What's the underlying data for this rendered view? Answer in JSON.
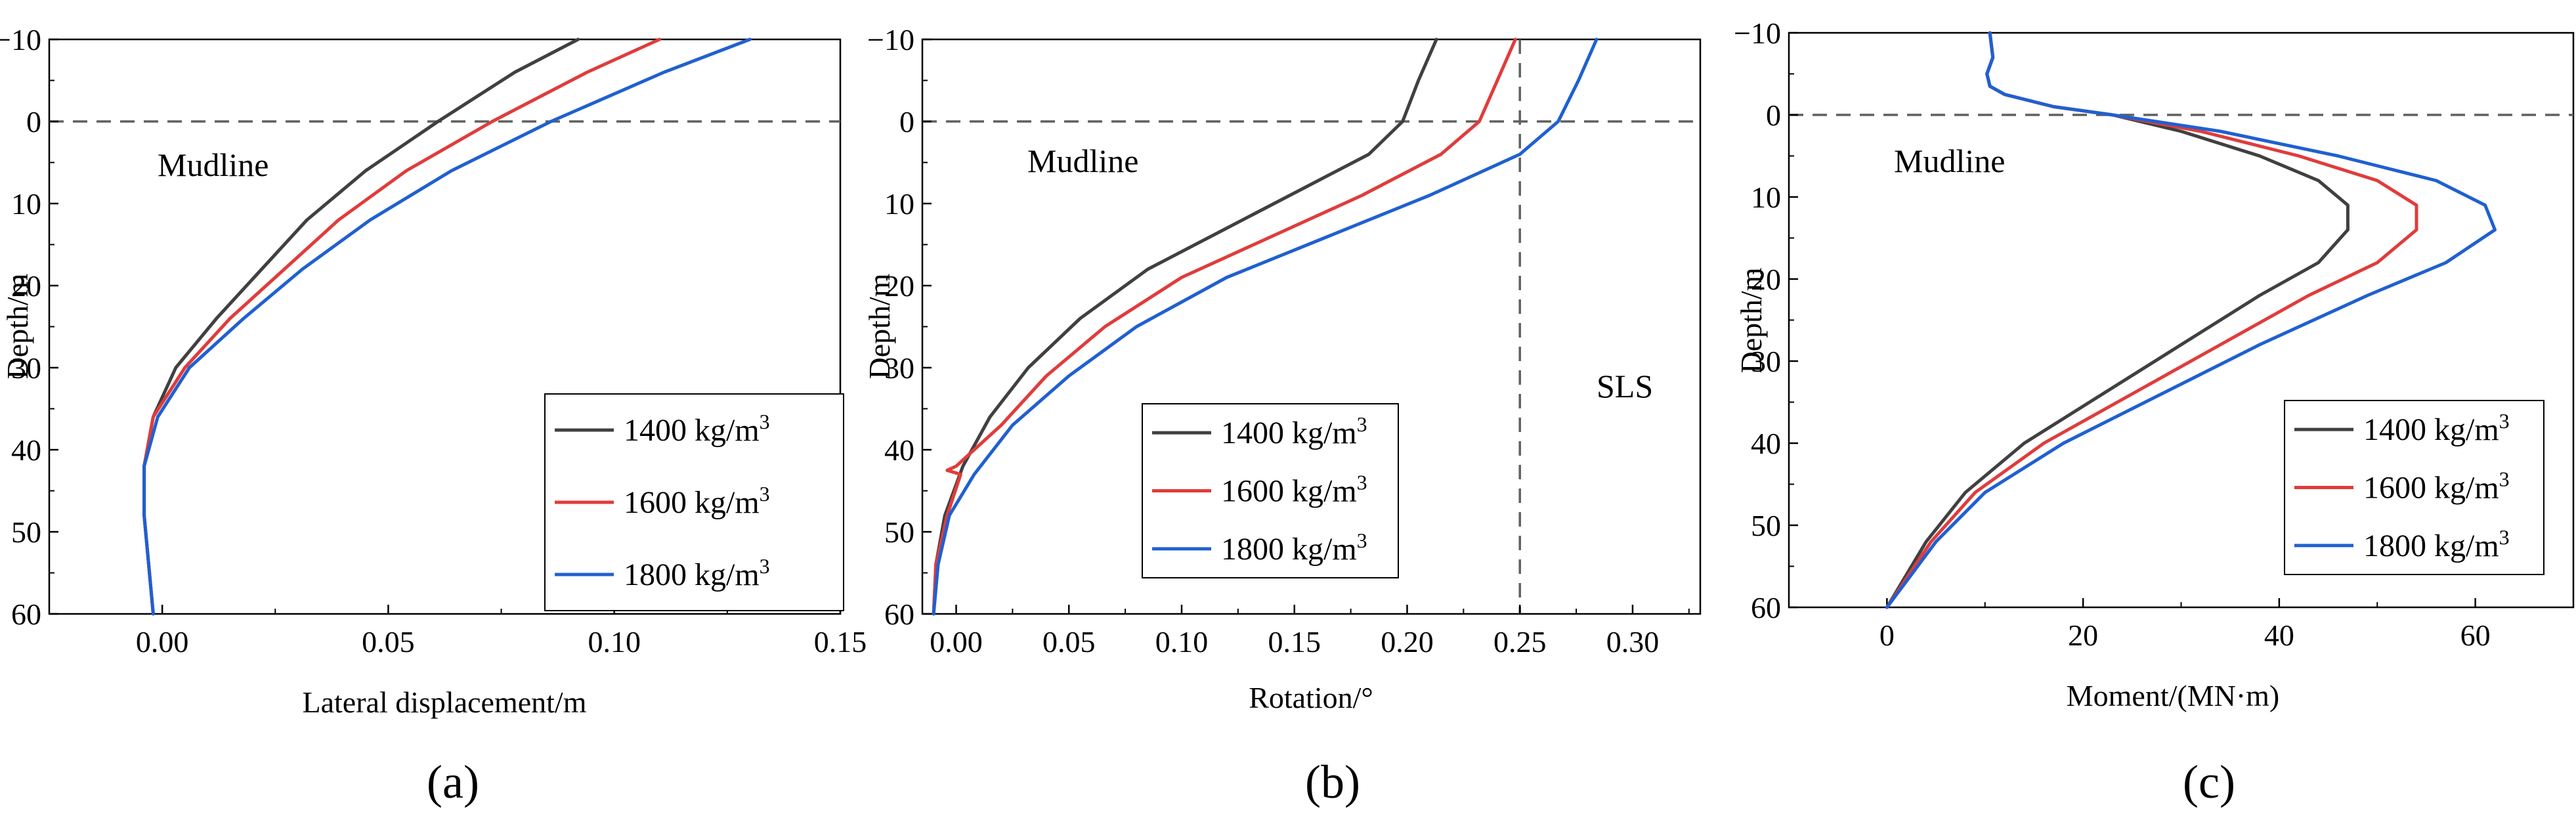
{
  "chart_data": [
    {
      "type": "line",
      "panel_label": "(a)",
      "xlabel": "Lateral displacement/m",
      "ylabel": "Depth/m",
      "xlim": [
        -0.025,
        0.15
      ],
      "ylim": [
        -10,
        60
      ],
      "y_inverted": true,
      "xticks": [
        0.0,
        0.05,
        0.1,
        0.15
      ],
      "xtick_labels": [
        "0.00",
        "0.05",
        "0.10",
        "0.15"
      ],
      "yticks": [
        -10,
        0,
        10,
        20,
        30,
        40,
        50,
        60
      ],
      "ytick_labels": [
        "−10",
        "0",
        "10",
        "20",
        "30",
        "40",
        "50",
        "60"
      ],
      "mudline": {
        "depth": 0,
        "label": "Mudline"
      },
      "legend_position": "lower-right",
      "series": [
        {
          "name": "1400 kg/m",
          "sup": "3",
          "color": "#404040",
          "points": [
            [
              0.092,
              -10
            ],
            [
              0.078,
              -6
            ],
            [
              0.061,
              0
            ],
            [
              0.045,
              6
            ],
            [
              0.032,
              12
            ],
            [
              0.022,
              18
            ],
            [
              0.012,
              24
            ],
            [
              0.003,
              30
            ],
            [
              -0.002,
              36
            ],
            [
              -0.004,
              42
            ],
            [
              -0.004,
              48
            ],
            [
              -0.003,
              54
            ],
            [
              -0.002,
              60
            ]
          ]
        },
        {
          "name": "1600 kg/m",
          "sup": "3",
          "color": "#e03c3c",
          "points": [
            [
              0.11,
              -10
            ],
            [
              0.094,
              -6
            ],
            [
              0.073,
              0
            ],
            [
              0.054,
              6
            ],
            [
              0.039,
              12
            ],
            [
              0.027,
              18
            ],
            [
              0.015,
              24
            ],
            [
              0.005,
              30
            ],
            [
              -0.002,
              36
            ],
            [
              -0.004,
              42
            ],
            [
              -0.004,
              48
            ],
            [
              -0.003,
              54
            ],
            [
              -0.002,
              60
            ]
          ]
        },
        {
          "name": "1800 kg/m",
          "sup": "3",
          "color": "#2060d0",
          "points": [
            [
              0.13,
              -10
            ],
            [
              0.111,
              -6
            ],
            [
              0.086,
              0
            ],
            [
              0.064,
              6
            ],
            [
              0.046,
              12
            ],
            [
              0.031,
              18
            ],
            [
              0.018,
              24
            ],
            [
              0.006,
              30
            ],
            [
              -0.001,
              36
            ],
            [
              -0.004,
              42
            ],
            [
              -0.004,
              48
            ],
            [
              -0.003,
              54
            ],
            [
              -0.002,
              60
            ]
          ]
        }
      ]
    },
    {
      "type": "line",
      "panel_label": "(b)",
      "xlabel": "Rotation/°",
      "ylabel": "Depth/m",
      "xlim": [
        -0.015,
        0.33
      ],
      "ylim": [
        -10,
        60
      ],
      "y_inverted": true,
      "xticks": [
        0.0,
        0.05,
        0.1,
        0.15,
        0.2,
        0.25,
        0.3
      ],
      "xtick_labels": [
        "0.00",
        "0.05",
        "0.10",
        "0.15",
        "0.20",
        "0.25",
        "0.30"
      ],
      "yticks": [
        -10,
        0,
        10,
        20,
        30,
        40,
        50,
        60
      ],
      "ytick_labels": [
        "−10",
        "0",
        "10",
        "20",
        "30",
        "40",
        "50",
        "60"
      ],
      "mudline": {
        "depth": 0,
        "label": "Mudline"
      },
      "limit_line": {
        "x": 0.25,
        "label": "SLS"
      },
      "legend_position": "lower-left",
      "series": [
        {
          "name": "1400 kg/m",
          "sup": "3",
          "color": "#404040",
          "points": [
            [
              0.213,
              -10
            ],
            [
              0.205,
              -5
            ],
            [
              0.198,
              0
            ],
            [
              0.183,
              4
            ],
            [
              0.155,
              8
            ],
            [
              0.12,
              13
            ],
            [
              0.085,
              18
            ],
            [
              0.055,
              24
            ],
            [
              0.032,
              30
            ],
            [
              0.015,
              36
            ],
            [
              0.003,
              42
            ],
            [
              -0.005,
              48
            ],
            [
              -0.009,
              54
            ],
            [
              -0.01,
              60
            ]
          ]
        },
        {
          "name": "1600 kg/m",
          "sup": "3",
          "color": "#e03c3c",
          "points": [
            [
              0.248,
              -10
            ],
            [
              0.24,
              -5
            ],
            [
              0.232,
              0
            ],
            [
              0.215,
              4
            ],
            [
              0.18,
              9
            ],
            [
              0.14,
              14
            ],
            [
              0.1,
              19
            ],
            [
              0.066,
              25
            ],
            [
              0.04,
              31
            ],
            [
              0.02,
              37
            ],
            [
              0.0,
              42
            ],
            [
              -0.004,
              42.5
            ],
            [
              0.002,
              43
            ],
            [
              -0.004,
              48
            ],
            [
              -0.009,
              54
            ],
            [
              -0.01,
              60
            ]
          ]
        },
        {
          "name": "1800 kg/m",
          "sup": "3",
          "color": "#2060d0",
          "points": [
            [
              0.284,
              -10
            ],
            [
              0.276,
              -5
            ],
            [
              0.267,
              0
            ],
            [
              0.25,
              4
            ],
            [
              0.21,
              9
            ],
            [
              0.165,
              14
            ],
            [
              0.12,
              19
            ],
            [
              0.08,
              25
            ],
            [
              0.05,
              31
            ],
            [
              0.025,
              37
            ],
            [
              0.008,
              43
            ],
            [
              -0.003,
              48
            ],
            [
              -0.008,
              54
            ],
            [
              -0.01,
              60
            ]
          ]
        }
      ]
    },
    {
      "type": "line",
      "panel_label": "(c)",
      "xlabel": "Moment/(MN·m)",
      "ylabel": "Depth/m",
      "xlim": [
        -10,
        70
      ],
      "ylim": [
        -10,
        60
      ],
      "y_inverted": true,
      "xticks": [
        0,
        20,
        40,
        60
      ],
      "xtick_labels": [
        "0",
        "20",
        "40",
        "60"
      ],
      "yticks": [
        -10,
        0,
        10,
        20,
        30,
        40,
        50,
        60
      ],
      "ytick_labels": [
        "−10",
        "0",
        "10",
        "20",
        "30",
        "40",
        "50",
        "60"
      ],
      "mudline": {
        "depth": 0,
        "label": "Mudline"
      },
      "legend_position": "lower-right",
      "series": [
        {
          "name": "1400 kg/m",
          "sup": "3",
          "color": "#404040",
          "points": [
            [
              10.5,
              -10
            ],
            [
              10.8,
              -7
            ],
            [
              10.2,
              -5
            ],
            [
              10.5,
              -3.5
            ],
            [
              12,
              -2.5
            ],
            [
              17,
              -1
            ],
            [
              23,
              0
            ],
            [
              30,
              2
            ],
            [
              38,
              5
            ],
            [
              44,
              8
            ],
            [
              47,
              11
            ],
            [
              47,
              14
            ],
            [
              44,
              18
            ],
            [
              38,
              22
            ],
            [
              30,
              28
            ],
            [
              22,
              34
            ],
            [
              14,
              40
            ],
            [
              8,
              46
            ],
            [
              4,
              52
            ],
            [
              0,
              60
            ]
          ]
        },
        {
          "name": "1600 kg/m",
          "sup": "3",
          "color": "#e03c3c",
          "points": [
            [
              10.5,
              -10
            ],
            [
              10.8,
              -7
            ],
            [
              10.2,
              -5
            ],
            [
              10.5,
              -3.5
            ],
            [
              12,
              -2.5
            ],
            [
              17,
              -1
            ],
            [
              23,
              0
            ],
            [
              32,
              2
            ],
            [
              42,
              5
            ],
            [
              50,
              8
            ],
            [
              54,
              11
            ],
            [
              54,
              14
            ],
            [
              50,
              18
            ],
            [
              43,
              22
            ],
            [
              34,
              28
            ],
            [
              25,
              34
            ],
            [
              16,
              40
            ],
            [
              9,
              46
            ],
            [
              4.5,
              52
            ],
            [
              0,
              60
            ]
          ]
        },
        {
          "name": "1800 kg/m",
          "sup": "3",
          "color": "#2060d0",
          "points": [
            [
              10.5,
              -10
            ],
            [
              10.8,
              -7
            ],
            [
              10.2,
              -5
            ],
            [
              10.5,
              -3.5
            ],
            [
              12,
              -2.5
            ],
            [
              17,
              -1
            ],
            [
              23,
              0
            ],
            [
              34,
              2
            ],
            [
              46,
              5
            ],
            [
              56,
              8
            ],
            [
              61,
              11
            ],
            [
              62,
              14
            ],
            [
              57,
              18
            ],
            [
              49,
              22
            ],
            [
              38,
              28
            ],
            [
              28,
              34
            ],
            [
              18,
              40
            ],
            [
              10,
              46
            ],
            [
              5,
              52
            ],
            [
              0,
              60
            ]
          ]
        }
      ]
    }
  ]
}
